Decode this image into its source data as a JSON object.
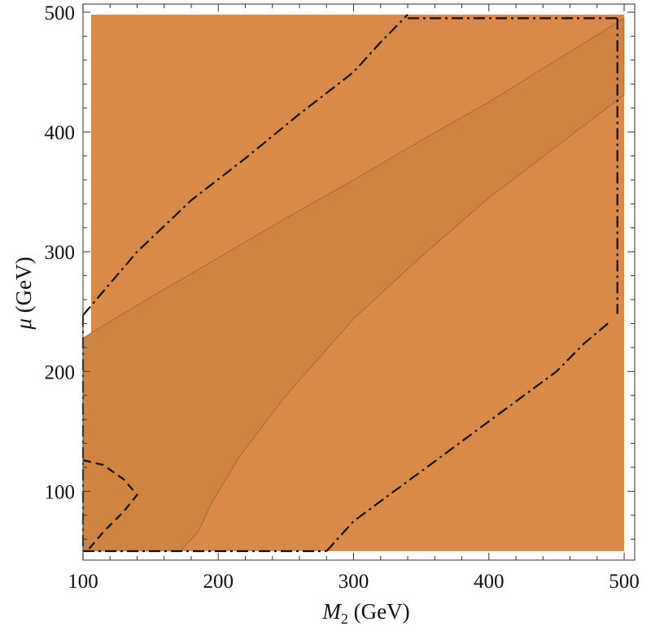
{
  "chart_data": {
    "type": "contour",
    "xlabel": {
      "symbol": "M",
      "sub": "2",
      "unit": " (GeV)"
    },
    "ylabel": {
      "symbol": "μ",
      "unit": " (GeV)"
    },
    "xlim": [
      100,
      500
    ],
    "ylim": [
      50,
      500
    ],
    "x_ticks": [
      100,
      200,
      300,
      400,
      500
    ],
    "y_ticks": [
      100,
      200,
      300,
      400,
      500
    ],
    "x_tick_labels": [
      "100",
      "200",
      "300",
      "400",
      "500"
    ],
    "y_tick_labels": [
      "100",
      "200",
      "300",
      "400",
      "500"
    ],
    "grid": false,
    "colors": {
      "outer_region": "#D98A48",
      "inner_region": "#CF8442",
      "frame": "#555555",
      "contour": "#111111"
    },
    "regions": [
      {
        "id": "inner-band",
        "points": [
          [
            100,
            228
          ],
          [
            150,
            262
          ],
          [
            200,
            295
          ],
          [
            250,
            328
          ],
          [
            300,
            360
          ],
          [
            350,
            393
          ],
          [
            400,
            425
          ],
          [
            450,
            460
          ],
          [
            500,
            495
          ],
          [
            500,
            431
          ],
          [
            450,
            388
          ],
          [
            400,
            345
          ],
          [
            350,
            296
          ],
          [
            300,
            244
          ],
          [
            250,
            180
          ],
          [
            215,
            128
          ],
          [
            195,
            90
          ],
          [
            185,
            66
          ],
          [
            172,
            50
          ],
          [
            100,
            50
          ]
        ]
      }
    ],
    "contours": [
      {
        "id": "upper-dashdot",
        "style": "dashdot",
        "points": [
          [
            100,
            247
          ],
          [
            140,
            300
          ],
          [
            180,
            343
          ],
          [
            220,
            378
          ],
          [
            260,
            415
          ],
          [
            300,
            450
          ],
          [
            320,
            475
          ],
          [
            340,
            498
          ]
        ]
      },
      {
        "id": "lower-dashdot",
        "style": "dashdot",
        "points": [
          [
            280,
            50
          ],
          [
            300,
            75
          ],
          [
            330,
            100
          ],
          [
            360,
            125
          ],
          [
            390,
            150
          ],
          [
            420,
            175
          ],
          [
            450,
            200
          ],
          [
            470,
            223
          ],
          [
            490,
            242
          ]
        ]
      },
      {
        "id": "left-dashed",
        "style": "dashed",
        "points": [
          [
            100,
            126
          ],
          [
            115,
            122
          ],
          [
            130,
            110
          ],
          [
            140,
            97
          ],
          [
            130,
            83
          ],
          [
            115,
            66
          ],
          [
            103,
            50
          ]
        ]
      },
      {
        "id": "border-top",
        "style": "dashdot",
        "points": [
          [
            340,
            495
          ],
          [
            495,
            495
          ]
        ]
      },
      {
        "id": "border-right",
        "style": "dashdot",
        "points": [
          [
            495,
            495
          ],
          [
            495,
            248
          ]
        ]
      },
      {
        "id": "border-left",
        "style": "dashdot",
        "points": [
          [
            100,
            247
          ],
          [
            100,
            50
          ]
        ]
      },
      {
        "id": "border-bottom",
        "style": "dashdot",
        "points": [
          [
            100,
            50
          ],
          [
            280,
            50
          ]
        ]
      }
    ]
  }
}
